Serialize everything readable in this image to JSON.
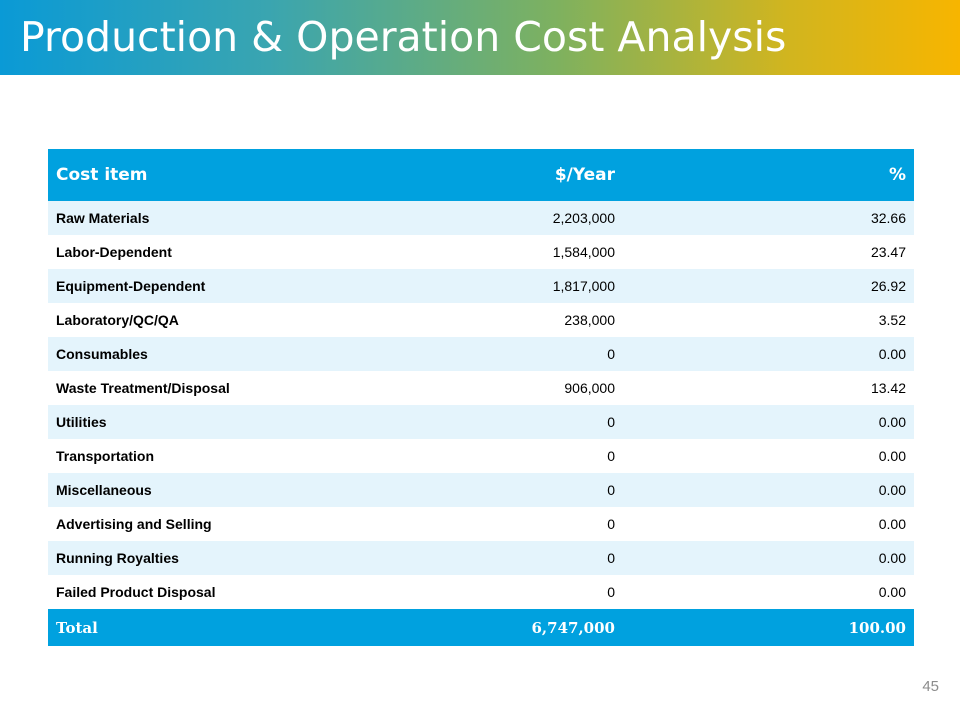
{
  "slide": {
    "title": "Production & Operation Cost Analysis",
    "page_number": "45",
    "colors": {
      "header_fill": "#00a1df",
      "stripe_fill": "#e4f4fc",
      "gradient_start": "#0a9ad6",
      "gradient_end": "#f7b500"
    }
  },
  "table": {
    "headers": [
      "Cost item",
      "$/Year",
      "%"
    ],
    "rows": [
      [
        "Raw Materials",
        "2,203,000",
        "32.66"
      ],
      [
        "Labor-Dependent",
        "1,584,000",
        "23.47"
      ],
      [
        "Equipment-Dependent",
        "1,817,000",
        "26.92"
      ],
      [
        "Laboratory/QC/QA",
        "238,000",
        "3.52"
      ],
      [
        "Consumables",
        "0",
        "0.00"
      ],
      [
        "Waste Treatment/Disposal",
        "906,000",
        "13.42"
      ],
      [
        "Utilities",
        "0",
        "0.00"
      ],
      [
        "Transportation",
        "0",
        "0.00"
      ],
      [
        "Miscellaneous",
        "0",
        "0.00"
      ],
      [
        "Advertising and Selling",
        "0",
        "0.00"
      ],
      [
        "Running Royalties",
        "0",
        "0.00"
      ],
      [
        "Failed Product Disposal",
        "0",
        "0.00"
      ]
    ],
    "total": [
      "Total",
      "6,747,000",
      "100.00"
    ]
  }
}
